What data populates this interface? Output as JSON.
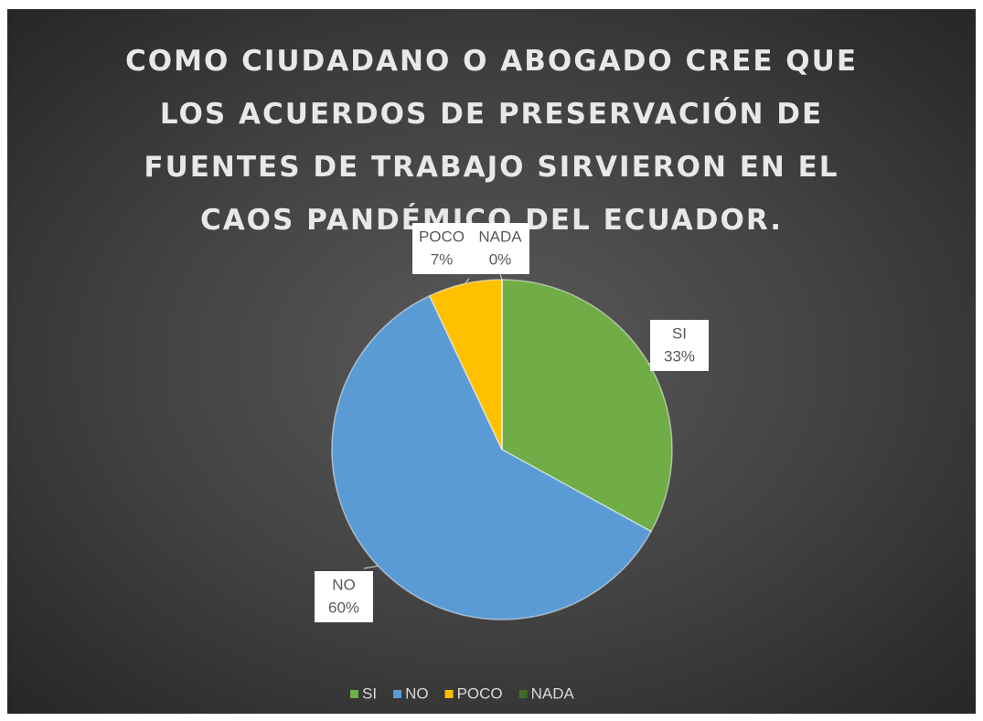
{
  "chart_data": {
    "type": "pie",
    "title": "COMO CIUDADANO O ABOGADO CREE QUE LOS ACUERDOS DE PRESERVACIÓN DE FUENTES DE TRABAJO SIRVIERON EN EL CAOS PANDÉMICO DEL ECUADOR.",
    "categories": [
      "SI",
      "NO",
      "POCO",
      "NADA"
    ],
    "values": [
      33,
      60,
      7,
      0
    ],
    "value_labels": [
      "33%",
      "60%",
      "7%",
      "0%"
    ],
    "colors": [
      "#70ad47",
      "#5b9bd5",
      "#ffc000",
      "#43682b"
    ],
    "legend": "bottom"
  }
}
